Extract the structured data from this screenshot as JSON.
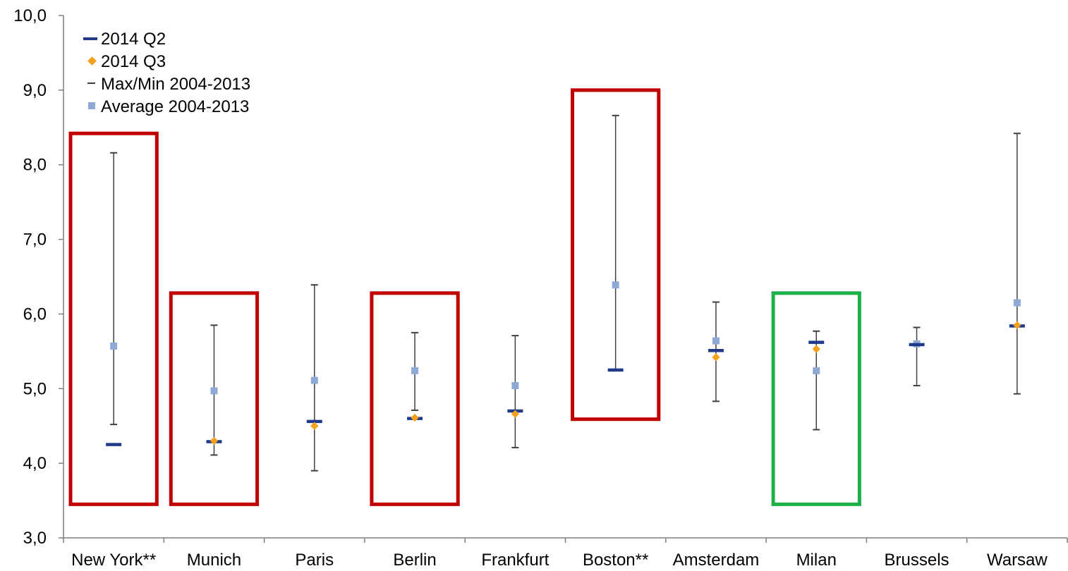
{
  "chart_data": {
    "type": "scatter",
    "categories": [
      "New York**",
      "Munich",
      "Paris",
      "Berlin",
      "Frankfurt",
      "Boston**",
      "Amsterdam",
      "Milan",
      "Brussels",
      "Warsaw"
    ],
    "ylim": [
      3.0,
      10.0
    ],
    "y_ticks": [
      "3,0",
      "4,0",
      "5,0",
      "6,0",
      "7,0",
      "8,0",
      "9,0",
      "10,0"
    ],
    "grid": false,
    "legend_position": "top-left",
    "series": [
      {
        "name": "2014 Q2",
        "marker": "dash",
        "color": "#1f3a8a",
        "values": [
          4.25,
          4.29,
          4.56,
          4.6,
          4.7,
          5.25,
          5.51,
          5.62,
          5.59,
          5.84
        ]
      },
      {
        "name": "2014 Q3",
        "marker": "diamond",
        "color": "#f5a01a",
        "values": [
          null,
          4.3,
          4.5,
          4.61,
          4.66,
          null,
          5.42,
          5.53,
          null,
          5.85
        ]
      },
      {
        "name": "Max/Min 2004-2013",
        "marker": "errorbar",
        "color": "#404040",
        "max": [
          8.16,
          5.85,
          6.39,
          5.75,
          5.71,
          8.66,
          6.16,
          5.77,
          5.82,
          8.42
        ],
        "min": [
          4.52,
          4.11,
          3.9,
          4.71,
          4.21,
          5.25,
          4.83,
          4.45,
          5.04,
          4.93
        ]
      },
      {
        "name": "Average 2004-2013",
        "marker": "square",
        "color": "#8ea9d6",
        "values": [
          5.57,
          4.97,
          5.11,
          5.24,
          5.04,
          6.39,
          5.64,
          5.24,
          5.6,
          6.15
        ]
      }
    ],
    "highlight_boxes": [
      {
        "from": 0,
        "to": 0,
        "top": 8.42,
        "bottom": 3.45,
        "color": "#c00000"
      },
      {
        "from": 1,
        "to": 1,
        "top": 6.28,
        "bottom": 3.45,
        "color": "#c00000"
      },
      {
        "from": 3,
        "to": 3,
        "top": 6.28,
        "bottom": 3.45,
        "color": "#c00000"
      },
      {
        "from": 5,
        "to": 5,
        "top": 9.0,
        "bottom": 4.59,
        "color": "#c00000"
      },
      {
        "from": 7,
        "to": 7,
        "top": 6.28,
        "bottom": 3.45,
        "color": "#1db049"
      }
    ]
  }
}
